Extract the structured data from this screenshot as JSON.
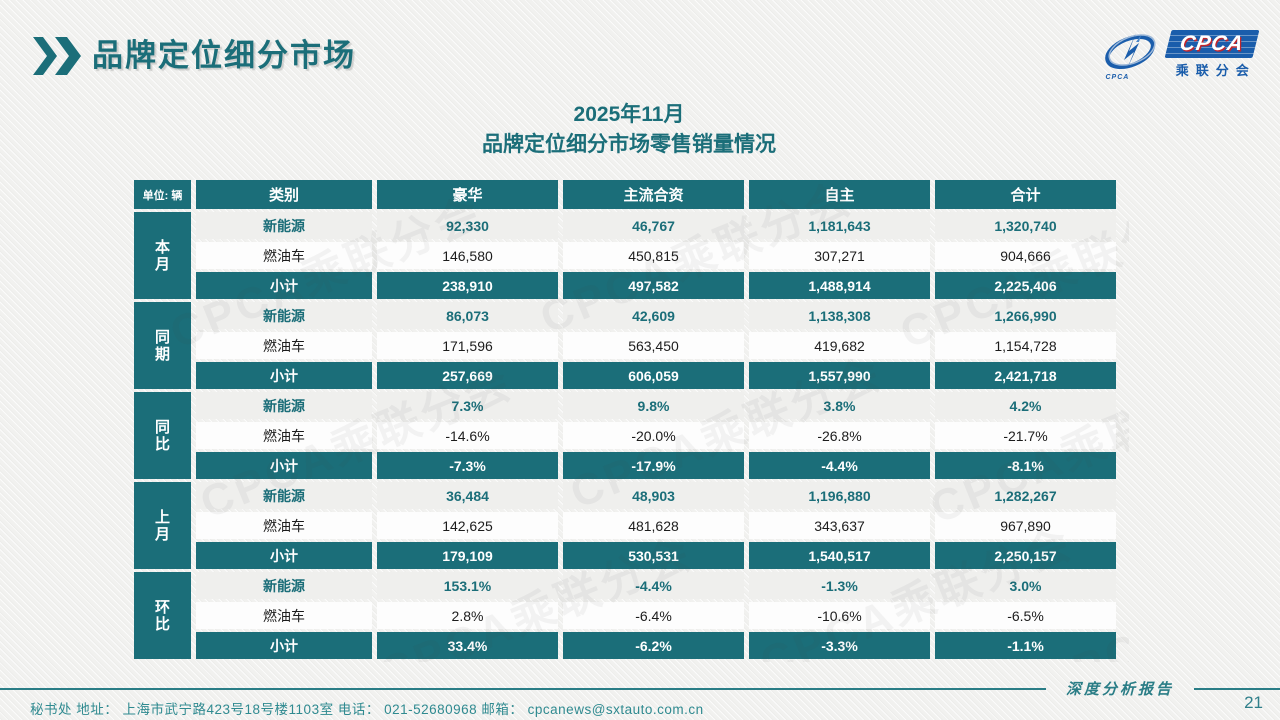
{
  "header": {
    "title": "品牌定位细分市场",
    "logo": {
      "cpca": "CPCA",
      "cn": "乘联分会",
      "emblem_text": "CPCA",
      "blue": "#1a5dab",
      "red": "#c0272d"
    }
  },
  "main": {
    "title_line1": "2025年11月",
    "title_line2": "品牌定位细分市场零售销量情况"
  },
  "table": {
    "unit_label": "单位: 辆",
    "columns": [
      "类别",
      "豪华",
      "主流合资",
      "自主",
      "合计"
    ],
    "groups": [
      {
        "label": "本月",
        "rows": [
          {
            "type": "nev",
            "label": "新能源",
            "values": [
              "92,330",
              "46,767",
              "1,181,643",
              "1,320,740"
            ]
          },
          {
            "type": "fuel",
            "label": "燃油车",
            "values": [
              "146,580",
              "450,815",
              "307,271",
              "904,666"
            ]
          },
          {
            "type": "subtotal",
            "label": "小计",
            "values": [
              "238,910",
              "497,582",
              "1,488,914",
              "2,225,406"
            ]
          }
        ]
      },
      {
        "label": "同期",
        "rows": [
          {
            "type": "nev",
            "label": "新能源",
            "values": [
              "86,073",
              "42,609",
              "1,138,308",
              "1,266,990"
            ]
          },
          {
            "type": "fuel",
            "label": "燃油车",
            "values": [
              "171,596",
              "563,450",
              "419,682",
              "1,154,728"
            ]
          },
          {
            "type": "subtotal",
            "label": "小计",
            "values": [
              "257,669",
              "606,059",
              "1,557,990",
              "2,421,718"
            ]
          }
        ]
      },
      {
        "label": "同比",
        "rows": [
          {
            "type": "nev",
            "label": "新能源",
            "values": [
              "7.3%",
              "9.8%",
              "3.8%",
              "4.2%"
            ]
          },
          {
            "type": "fuel",
            "label": "燃油车",
            "values": [
              "-14.6%",
              "-20.0%",
              "-26.8%",
              "-21.7%"
            ]
          },
          {
            "type": "subtotal",
            "label": "小计",
            "values": [
              "-7.3%",
              "-17.9%",
              "-4.4%",
              "-8.1%"
            ]
          }
        ]
      },
      {
        "label": "上月",
        "rows": [
          {
            "type": "nev",
            "label": "新能源",
            "values": [
              "36,484",
              "48,903",
              "1,196,880",
              "1,282,267"
            ]
          },
          {
            "type": "fuel",
            "label": "燃油车",
            "values": [
              "142,625",
              "481,628",
              "343,637",
              "967,890"
            ]
          },
          {
            "type": "subtotal",
            "label": "小计",
            "values": [
              "179,109",
              "530,531",
              "1,540,517",
              "2,250,157"
            ]
          }
        ]
      },
      {
        "label": "环比",
        "rows": [
          {
            "type": "nev",
            "label": "新能源",
            "values": [
              "153.1%",
              "-4.4%",
              "-1.3%",
              "3.0%"
            ]
          },
          {
            "type": "fuel",
            "label": "燃油车",
            "values": [
              "2.8%",
              "-6.4%",
              "-10.6%",
              "-6.5%"
            ]
          },
          {
            "type": "subtotal",
            "label": "小计",
            "values": [
              "33.4%",
              "-6.2%",
              "-3.3%",
              "-1.1%"
            ]
          }
        ]
      }
    ]
  },
  "watermark": "CPCA乘联分会",
  "footer": {
    "report_label": "深度分析报告",
    "contact": "秘书处   地址： 上海市武宁路423号18号楼1103室  电话： 021-52680968   邮箱： cpcanews@sxtauto.com.cn",
    "page": "21"
  },
  "colors": {
    "teal": "#1b6e79",
    "footer_teal": "#2a7d86",
    "logo_blue": "#1a5dab",
    "logo_red": "#c0272d",
    "nev_row_bg": "#efefed",
    "fuel_row_bg": "#fdfdfd"
  }
}
